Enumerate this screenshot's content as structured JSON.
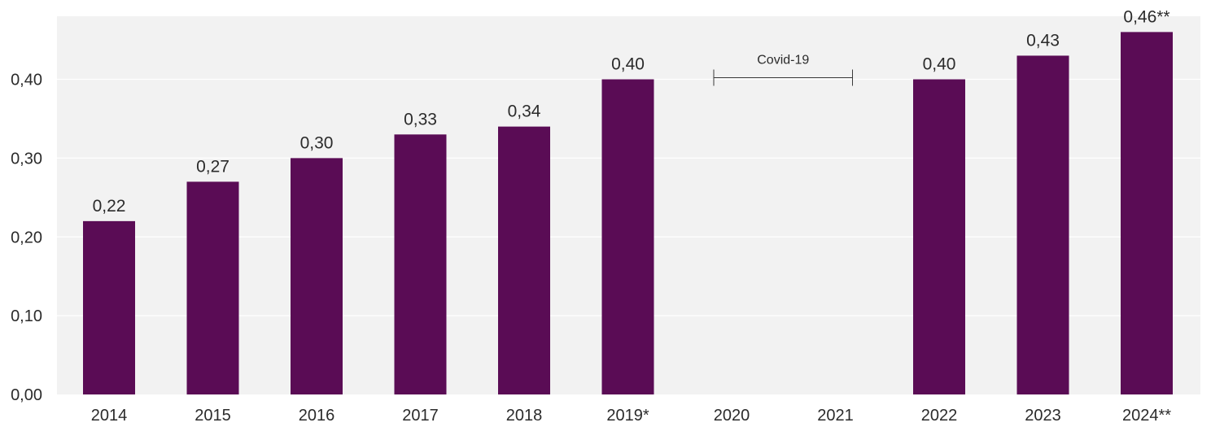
{
  "chart_data": {
    "type": "bar",
    "categories": [
      "2014",
      "2015",
      "2016",
      "2017",
      "2018",
      "2019*",
      "2020",
      "2021",
      "2022",
      "2023",
      "2024**"
    ],
    "values": [
      0.22,
      0.27,
      0.3,
      0.33,
      0.34,
      0.4,
      null,
      null,
      0.4,
      0.43,
      0.46
    ],
    "data_labels": [
      "0,22",
      "0,27",
      "0,30",
      "0,33",
      "0,34",
      "0,40",
      "",
      "",
      "0,40",
      "0,43",
      "0,46**"
    ],
    "ylim": [
      0,
      0.48
    ],
    "yticks": [
      0.0,
      0.1,
      0.2,
      0.3,
      0.4
    ],
    "ytick_labels": [
      "0,00",
      "0,10",
      "0,20",
      "0,30",
      "0,40"
    ],
    "annotations": [
      {
        "text": "Covid-19",
        "from_category": "2020",
        "to_category": "2021",
        "y": 0.4
      }
    ],
    "grid": true,
    "legend": "none",
    "colors": {
      "bar": "#5a0c55",
      "plot_background": "#f2f2f2",
      "grid": "#ffffff",
      "text": "#2b2b2b"
    }
  }
}
